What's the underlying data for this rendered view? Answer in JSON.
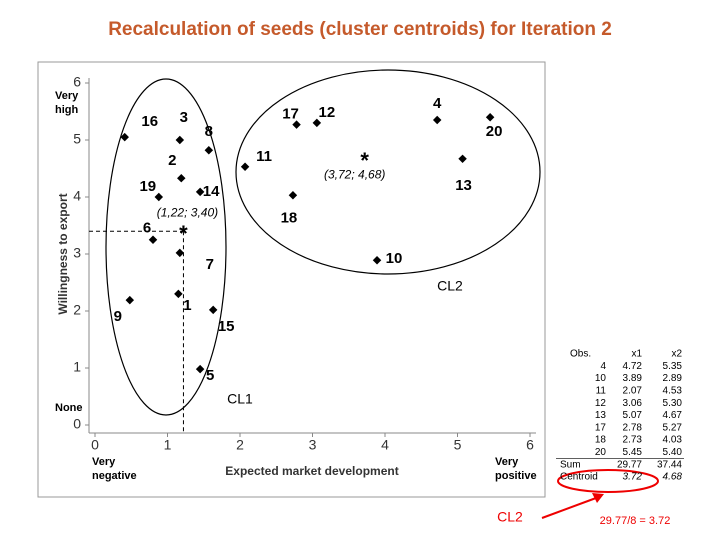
{
  "title": "Recalculation of seeds (cluster centroids) for Iteration 2",
  "chart_data": {
    "type": "scatter",
    "x_label": "Expected market development",
    "y_label": "Willingness to export",
    "xlim": [
      0,
      6
    ],
    "ylim": [
      0,
      6
    ],
    "xticks": [
      0,
      1,
      2,
      3,
      4,
      5,
      6
    ],
    "yticks": [
      0,
      1,
      2,
      3,
      4,
      5,
      6
    ],
    "color": "#000000",
    "point_labels": [
      "1",
      "2",
      "3",
      "4",
      "5",
      "6",
      "7",
      "8",
      "9",
      "10",
      "11",
      "12",
      "13",
      "14",
      "15",
      "16",
      "17",
      "18",
      "19",
      "20"
    ],
    "x": [
      1.15,
      1.19,
      1.17,
      4.72,
      1.45,
      0.8,
      1.17,
      1.57,
      0.48,
      3.89,
      2.07,
      3.06,
      5.07,
      1.45,
      1.63,
      0.41,
      2.78,
      2.73,
      0.88,
      5.45
    ],
    "values": [
      2.3,
      4.33,
      5.0,
      5.35,
      0.98,
      3.25,
      3.02,
      4.82,
      2.19,
      2.89,
      4.53,
      5.3,
      4.67,
      4.09,
      2.02,
      5.05,
      5.27,
      4.03,
      4.0,
      5.4
    ],
    "centroids": {
      "marker": "*",
      "labels": [
        "(1,22; 3,40)",
        "(3,72; 4,68)"
      ],
      "x": [
        1.22,
        3.72
      ],
      "values": [
        3.4,
        4.68
      ]
    },
    "annotations": {
      "y_high": "Very high",
      "y_low": "None",
      "x_low": "Very negative",
      "x_high": "Very positive"
    },
    "clusters": [
      "CL1",
      "CL2"
    ]
  },
  "table": {
    "headers": [
      "Obs.",
      "x1",
      "x2"
    ],
    "rows": [
      [
        "4",
        "4.72",
        "5.35"
      ],
      [
        "10",
        "3.89",
        "2.89"
      ],
      [
        "11",
        "2.07",
        "4.53"
      ],
      [
        "12",
        "3.06",
        "5.30"
      ],
      [
        "13",
        "5.07",
        "4.67"
      ],
      [
        "17",
        "2.78",
        "5.27"
      ],
      [
        "18",
        "2.73",
        "4.03"
      ],
      [
        "20",
        "5.45",
        "5.40"
      ],
      [
        "Sum",
        "29.77",
        "37.44"
      ],
      [
        "Centroid",
        "3.72",
        "4.68"
      ]
    ]
  },
  "callout_label": "CL2",
  "formula": "29.77/8 = 3.72"
}
